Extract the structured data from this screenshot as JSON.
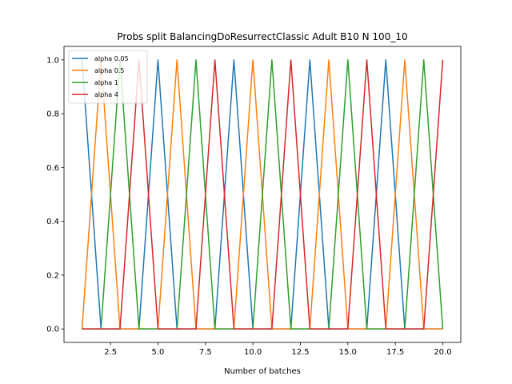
{
  "chart_data": {
    "type": "line",
    "title": "Probs split BalancingDoResurrectClassic Adult B10 N 100_10",
    "xlabel": "Number of batches",
    "ylabel": "",
    "xlim": [
      0.05,
      20.95
    ],
    "ylim": [
      -0.05,
      1.05
    ],
    "x_ticks": [
      2.5,
      5.0,
      7.5,
      10.0,
      12.5,
      15.0,
      17.5,
      20.0
    ],
    "x_tick_labels": [
      "2.5",
      "5.0",
      "7.5",
      "10.0",
      "12.5",
      "15.0",
      "17.5",
      "20.0"
    ],
    "y_ticks": [
      0.0,
      0.2,
      0.4,
      0.6,
      0.8,
      1.0
    ],
    "y_tick_labels": [
      "0.0",
      "0.2",
      "0.4",
      "0.6",
      "0.8",
      "1.0"
    ],
    "grid": false,
    "legend_position": "top-left",
    "x": [
      1,
      2,
      3,
      4,
      5,
      6,
      7,
      8,
      9,
      10,
      11,
      12,
      13,
      14,
      15,
      16,
      17,
      18,
      19,
      20
    ],
    "series": [
      {
        "name": "alpha 0.05",
        "color": "#1f77b4",
        "values": [
          1,
          0,
          0,
          0,
          1,
          0,
          0,
          0,
          1,
          0,
          0,
          0,
          1,
          0,
          0,
          0,
          1,
          0,
          0,
          0
        ]
      },
      {
        "name": "alpha 0.5",
        "color": "#ff7f0e",
        "values": [
          0,
          1,
          0,
          0,
          0,
          1,
          0,
          0,
          0,
          1,
          0,
          0,
          0,
          1,
          0,
          0,
          0,
          1,
          0,
          0
        ]
      },
      {
        "name": "alpha 1",
        "color": "#2ca02c",
        "values": [
          0,
          0,
          1,
          0,
          0,
          0,
          1,
          0,
          0,
          0,
          1,
          0,
          0,
          0,
          1,
          0,
          0,
          0,
          1,
          0
        ]
      },
      {
        "name": "alpha 4",
        "color": "#d62728",
        "values": [
          0,
          0,
          0,
          1,
          0,
          0,
          0,
          1,
          0,
          0,
          0,
          1,
          0,
          0,
          0,
          1,
          0,
          0,
          0,
          1
        ]
      }
    ]
  }
}
